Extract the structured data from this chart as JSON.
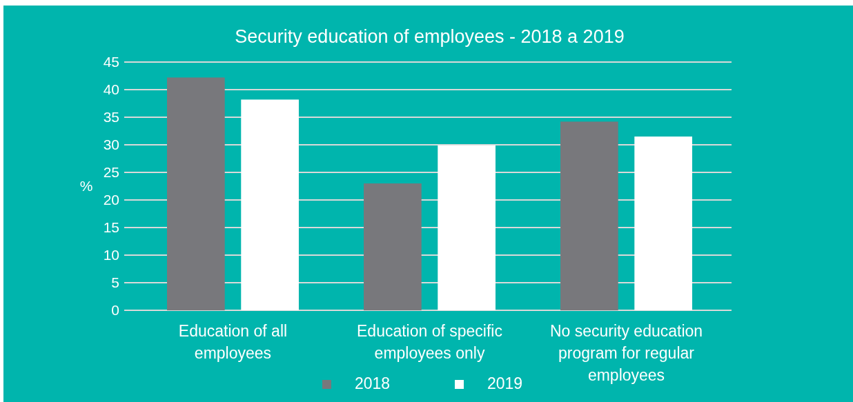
{
  "chart_data": {
    "type": "bar",
    "title": "Security education of employees - 2018 a 2019",
    "ylabel": "%",
    "categories": [
      "Education of all employees",
      "Education of specific employees only",
      "No security education program for regular employees"
    ],
    "series": [
      {
        "name": "2018",
        "color": "#78787c",
        "values": [
          42.2,
          23.0,
          34.2
        ]
      },
      {
        "name": "2019",
        "color": "#ffffff",
        "values": [
          38.2,
          29.9,
          31.5
        ]
      }
    ],
    "ylim": [
      0,
      45
    ],
    "yticks": [
      0,
      5,
      10,
      15,
      20,
      25,
      30,
      35,
      40,
      45
    ],
    "grid": "y",
    "legend": "bottom"
  }
}
